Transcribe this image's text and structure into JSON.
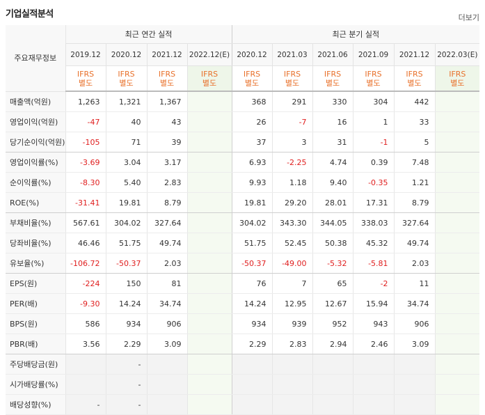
{
  "title": "기업실적분석",
  "more_label": "더보기",
  "corner_label": "주요재무정보",
  "groups": {
    "annual": "최근 연간 실적",
    "quarterly": "최근 분기 실적"
  },
  "periods": [
    "2019.12",
    "2020.12",
    "2021.12",
    "2022.12(E)",
    "2020.12",
    "2021.03",
    "2021.06",
    "2021.09",
    "2021.12",
    "2022.03(E)"
  ],
  "ifrs_top": "IFRS",
  "ifrs_bottom": "별도",
  "rows": [
    {
      "label": "매출액(억원)",
      "values": [
        "1,263",
        "1,321",
        "1,367",
        "",
        "368",
        "291",
        "330",
        "304",
        "442",
        ""
      ]
    },
    {
      "label": "영업이익(억원)",
      "values": [
        "-47",
        "40",
        "43",
        "",
        "26",
        "-7",
        "16",
        "1",
        "33",
        ""
      ]
    },
    {
      "label": "당기순이익(억원)",
      "values": [
        "-105",
        "71",
        "39",
        "",
        "37",
        "3",
        "31",
        "-1",
        "5",
        ""
      ]
    },
    {
      "label": "영업이익률(%)",
      "values": [
        "-3.69",
        "3.04",
        "3.17",
        "",
        "6.93",
        "-2.25",
        "4.74",
        "0.39",
        "7.48",
        ""
      ]
    },
    {
      "label": "순이익률(%)",
      "values": [
        "-8.30",
        "5.40",
        "2.83",
        "",
        "9.93",
        "1.18",
        "9.40",
        "-0.35",
        "1.21",
        ""
      ]
    },
    {
      "label": "ROE(%)",
      "values": [
        "-31.41",
        "19.81",
        "8.79",
        "",
        "19.81",
        "29.20",
        "28.01",
        "17.31",
        "8.79",
        ""
      ]
    },
    {
      "label": "부채비율(%)",
      "values": [
        "567.61",
        "304.02",
        "327.64",
        "",
        "304.02",
        "343.30",
        "344.05",
        "338.03",
        "327.64",
        ""
      ]
    },
    {
      "label": "당좌비율(%)",
      "values": [
        "46.46",
        "51.75",
        "49.74",
        "",
        "51.75",
        "52.45",
        "50.38",
        "45.32",
        "49.74",
        ""
      ]
    },
    {
      "label": "유보율(%)",
      "values": [
        "-106.72",
        "-50.37",
        "2.03",
        "",
        "-50.37",
        "-49.00",
        "-5.32",
        "-5.81",
        "2.03",
        ""
      ]
    },
    {
      "label": "EPS(원)",
      "values": [
        "-224",
        "150",
        "81",
        "",
        "76",
        "7",
        "65",
        "-2",
        "11",
        ""
      ]
    },
    {
      "label": "PER(배)",
      "values": [
        "-9.30",
        "14.24",
        "34.74",
        "",
        "14.24",
        "12.95",
        "12.67",
        "15.94",
        "34.74",
        ""
      ]
    },
    {
      "label": "BPS(원)",
      "values": [
        "586",
        "934",
        "906",
        "",
        "934",
        "939",
        "952",
        "943",
        "906",
        ""
      ]
    },
    {
      "label": "PBR(배)",
      "values": [
        "3.56",
        "2.29",
        "3.09",
        "",
        "2.29",
        "2.83",
        "2.94",
        "2.46",
        "3.09",
        ""
      ]
    },
    {
      "label": "주당배당금(원)",
      "values": [
        "",
        "-",
        "",
        "",
        "",
        "",
        "",
        "",
        "",
        ""
      ]
    },
    {
      "label": "시가배당률(%)",
      "values": [
        "",
        "-",
        "",
        "",
        "",
        "",
        "",
        "",
        "",
        ""
      ]
    },
    {
      "label": "배당성향(%)",
      "values": [
        "-",
        "-",
        "",
        "",
        "",
        "",
        "",
        "",
        "",
        ""
      ]
    }
  ],
  "colors": {
    "negative": "#e01e1e",
    "ifrs": "#e8702a",
    "estimate_bg": "#f5faf1"
  }
}
